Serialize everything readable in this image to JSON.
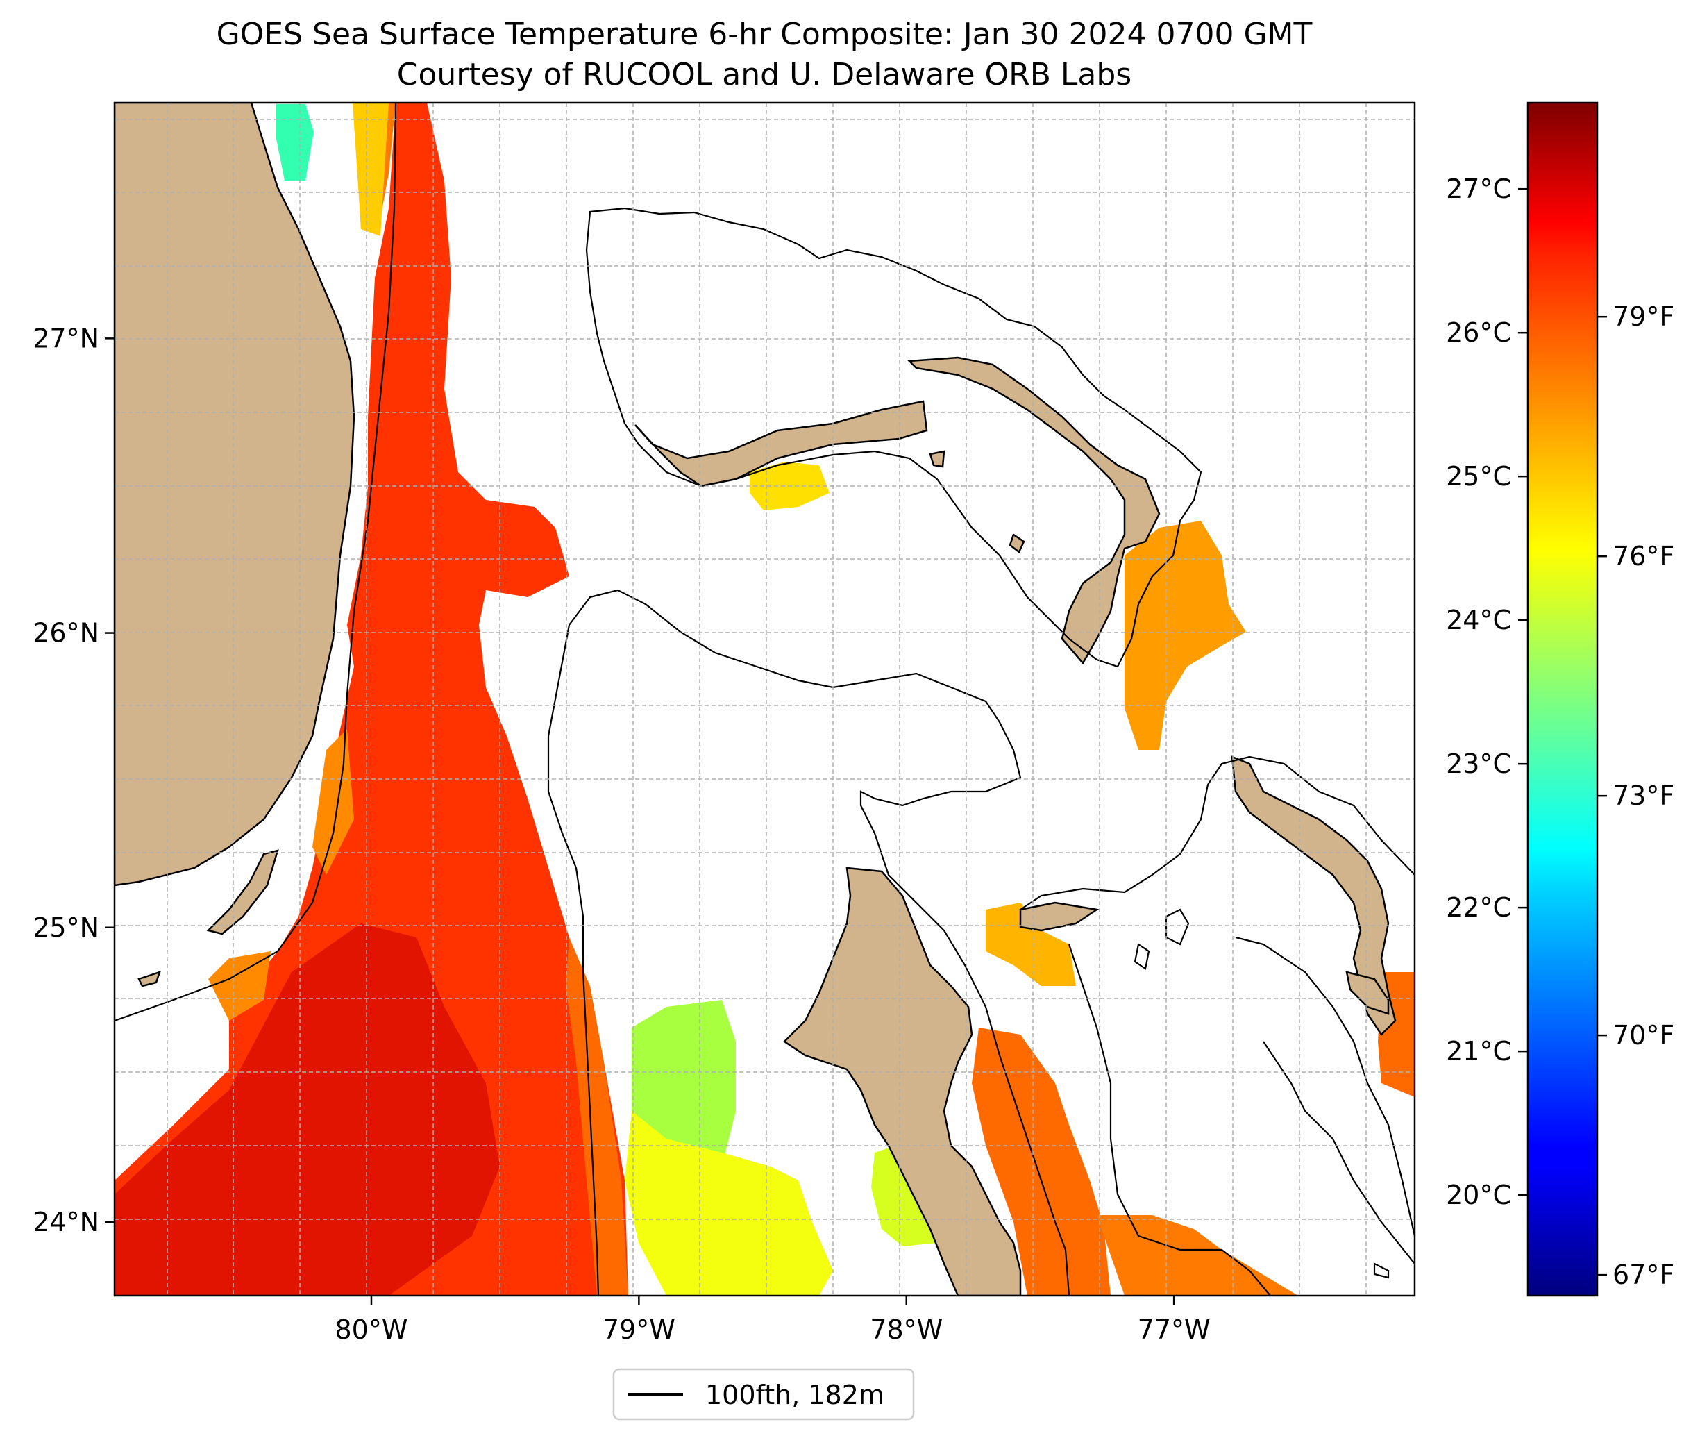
{
  "title": {
    "line1": "GOES Sea Surface Temperature 6-hr Composite: Jan 30 2024 0700 GMT",
    "line2": "Courtesy of RUCOOL and U. Delaware ORB Labs"
  },
  "map": {
    "lon_range": [
      -80.96,
      -76.1
    ],
    "lat_range": [
      23.75,
      27.8
    ],
    "lon_ticks": [
      {
        "value": -80,
        "label": "80°W"
      },
      {
        "value": -79,
        "label": "79°W"
      },
      {
        "value": -78,
        "label": "78°W"
      },
      {
        "value": -77,
        "label": "77°W"
      }
    ],
    "lat_ticks": [
      {
        "value": 24,
        "label": "24°N"
      },
      {
        "value": 25,
        "label": "25°N"
      },
      {
        "value": 26,
        "label": "26°N"
      },
      {
        "value": 27,
        "label": "27°N"
      }
    ],
    "grid": "dashed, light gray",
    "land_color": "#d2b48c",
    "ocean_color": "#ffffff"
  },
  "colorbar": {
    "colormap": "jet",
    "range_c": [
      19.3,
      27.6
    ],
    "celsius_ticks": [
      {
        "value": 20,
        "label": "20°C"
      },
      {
        "value": 21,
        "label": "21°C"
      },
      {
        "value": 22,
        "label": "22°C"
      },
      {
        "value": 23,
        "label": "23°C"
      },
      {
        "value": 24,
        "label": "24°C"
      },
      {
        "value": 25,
        "label": "25°C"
      },
      {
        "value": 26,
        "label": "26°C"
      },
      {
        "value": 27,
        "label": "27°C"
      }
    ],
    "fahrenheit_ticks": [
      {
        "value": 67,
        "label": "67°F"
      },
      {
        "value": 70,
        "label": "70°F"
      },
      {
        "value": 73,
        "label": "73°F"
      },
      {
        "value": 76,
        "label": "76°F"
      },
      {
        "value": 79,
        "label": "79°F"
      }
    ]
  },
  "legend": {
    "entry": "100fth, 182m",
    "placement": "bottom-center"
  }
}
